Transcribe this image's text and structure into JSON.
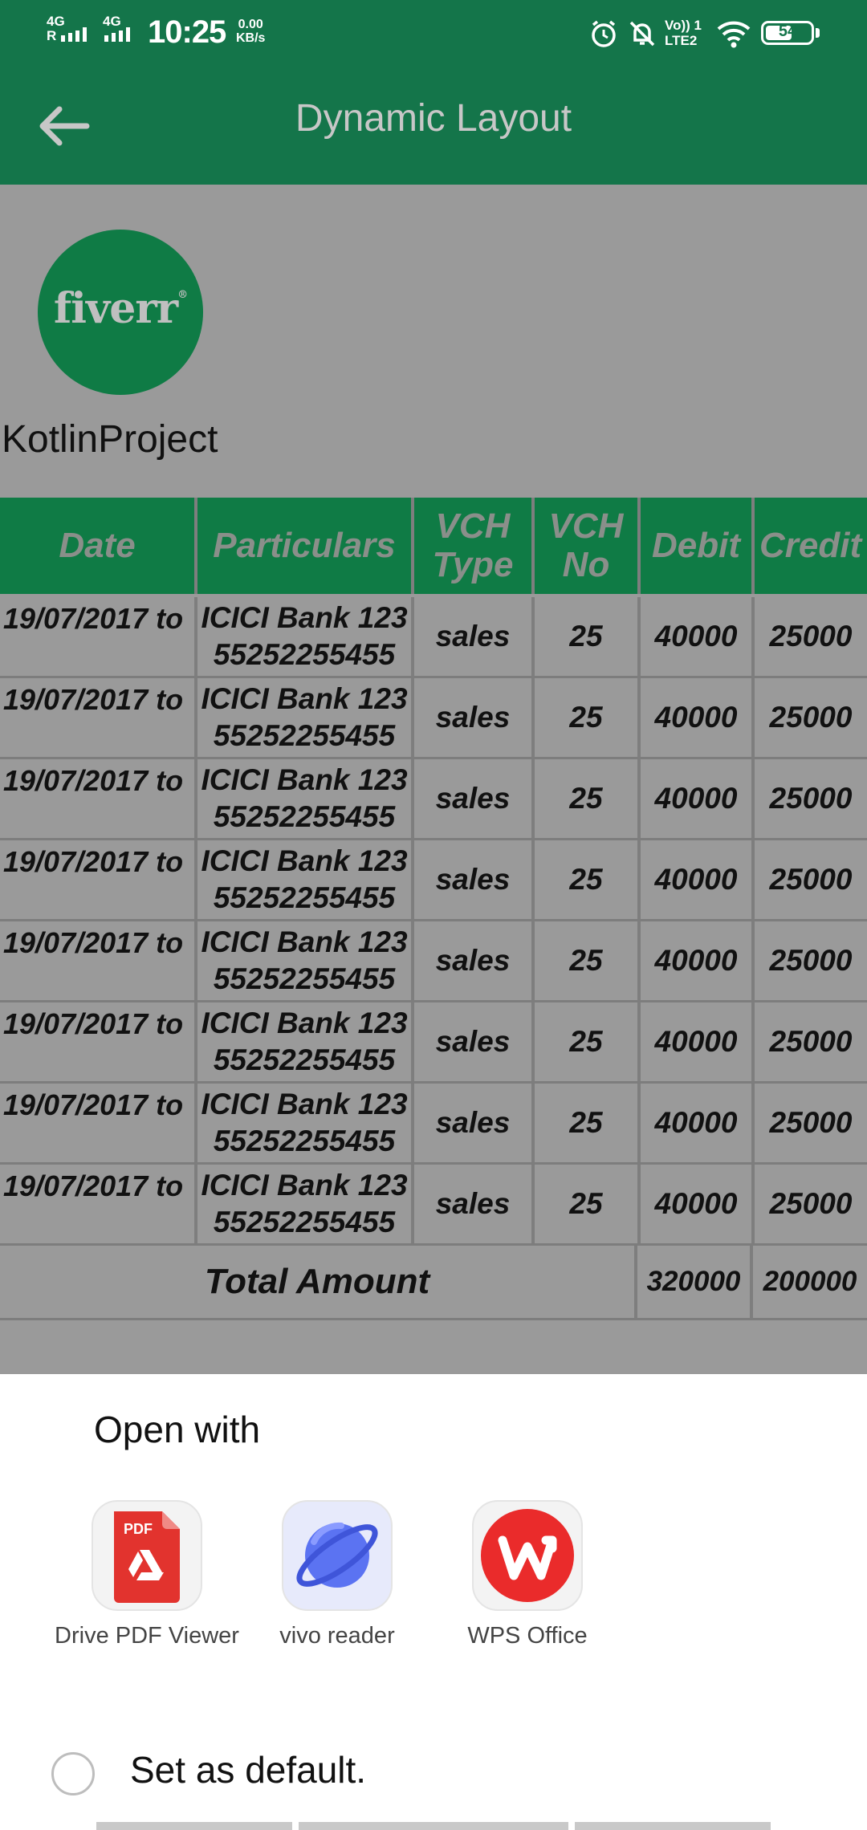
{
  "status_bar": {
    "net1": "4G",
    "net1_sub": "R",
    "net2": "4G",
    "time": "10:25",
    "speed_value": "0.00",
    "speed_unit": "KB/s",
    "volte": "Vo)) 1",
    "lte": "LTE2",
    "battery": "54"
  },
  "app_bar": {
    "title": "Dynamic Layout",
    "back_icon": "arrow-left-icon"
  },
  "logo": {
    "text": "fiverr",
    "mark": "®",
    "color": "#0f7b45"
  },
  "project_name": "KotlinProject",
  "ledger": {
    "headers": [
      "Date",
      "Particulars",
      "VCH Type",
      "VCH No",
      "Debit",
      "Credit"
    ],
    "rows": [
      {
        "date": "19/07/2017 to",
        "particulars": "ICICI Bank 123 55252255455",
        "vch_type": "sales",
        "vch_no": "25",
        "debit": "40000",
        "credit": "25000"
      },
      {
        "date": "19/07/2017 to",
        "particulars": "ICICI Bank 123 55252255455",
        "vch_type": "sales",
        "vch_no": "25",
        "debit": "40000",
        "credit": "25000"
      },
      {
        "date": "19/07/2017 to",
        "particulars": "ICICI Bank 123 55252255455",
        "vch_type": "sales",
        "vch_no": "25",
        "debit": "40000",
        "credit": "25000"
      },
      {
        "date": "19/07/2017 to",
        "particulars": "ICICI Bank 123 55252255455",
        "vch_type": "sales",
        "vch_no": "25",
        "debit": "40000",
        "credit": "25000"
      },
      {
        "date": "19/07/2017 to",
        "particulars": "ICICI Bank 123 55252255455",
        "vch_type": "sales",
        "vch_no": "25",
        "debit": "40000",
        "credit": "25000"
      },
      {
        "date": "19/07/2017 to",
        "particulars": "ICICI Bank 123 55252255455",
        "vch_type": "sales",
        "vch_no": "25",
        "debit": "40000",
        "credit": "25000"
      },
      {
        "date": "19/07/2017 to",
        "particulars": "ICICI Bank 123 55252255455",
        "vch_type": "sales",
        "vch_no": "25",
        "debit": "40000",
        "credit": "25000"
      },
      {
        "date": "19/07/2017 to",
        "particulars": "ICICI Bank 123 55252255455",
        "vch_type": "sales",
        "vch_no": "25",
        "debit": "40000",
        "credit": "25000"
      }
    ],
    "total_label": "Total Amount",
    "total_debit": "320000",
    "total_credit": "200000"
  },
  "open_with": {
    "title": "Open with",
    "apps": [
      {
        "label": "Drive PDF Viewer",
        "icon": "pdf-file-icon",
        "badge": "PDF"
      },
      {
        "label": "vivo reader",
        "icon": "planet-icon"
      },
      {
        "label": "WPS Office",
        "icon": "wps-logo-icon"
      }
    ],
    "default_label": "Set as default."
  },
  "colors": {
    "app_bar": "#14754a",
    "table_header": "#0f7b45",
    "scrim_content": "#9a9a9a",
    "pdf_red": "#e2332e",
    "wps_red": "#ea2b2b",
    "vivo_blue": "#5b73f2"
  }
}
